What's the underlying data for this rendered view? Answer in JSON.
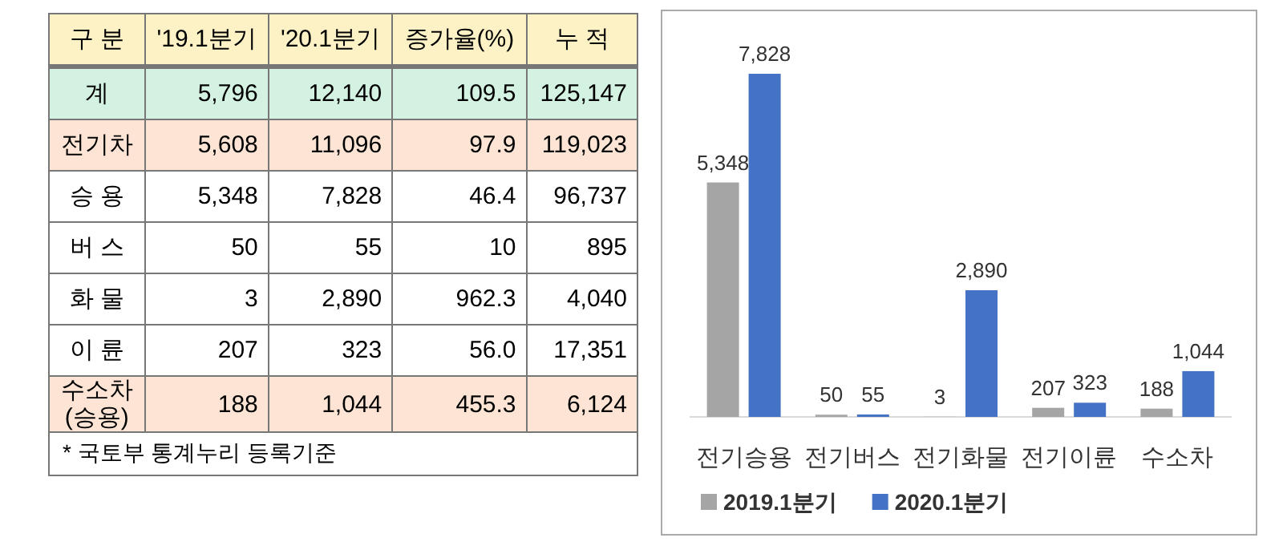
{
  "chart_data": [
    {
      "type": "other",
      "annotations": [
        "구 분",
        "'19.1분기",
        "'20.1분기",
        "증가율(%)",
        "누 적",
        "계",
        "5,796",
        "12,140",
        "109.5",
        "125,147",
        "전기차",
        "5,608",
        "11,096",
        "97.9",
        "119,023",
        "승 용",
        "5,348",
        "7,828",
        "46.4",
        "96,737",
        "버 스",
        "50",
        "55",
        "10",
        "895",
        "화 물",
        "3",
        "2,890",
        "962.3",
        "4,040",
        "이 륜",
        "207",
        "323",
        "56.0",
        "17,351",
        "수소차\n(승용)",
        "188",
        "1,044",
        "455.3",
        "6,124",
        "* 국토부 통계누리 등록기준"
      ]
    },
    {
      "type": "bar",
      "categories": [
        "전기승용",
        "전기버스",
        "전기화물",
        "전기이륜",
        "수소차"
      ],
      "legend": "bottom",
      "series": [
        {
          "name": "2019.1분기",
          "color": "#a5a5a5",
          "values": [
            5348,
            50,
            3,
            207,
            188
          ],
          "value_labels": [
            "5,348",
            "50",
            "3",
            "207",
            "188"
          ]
        },
        {
          "name": "2020.1분기",
          "color": "#4472c4",
          "values": [
            7828,
            55,
            2890,
            323,
            1044
          ],
          "value_labels": [
            "7,828",
            "55",
            "2,890",
            "323",
            "1,044"
          ]
        }
      ]
    }
  ]
}
